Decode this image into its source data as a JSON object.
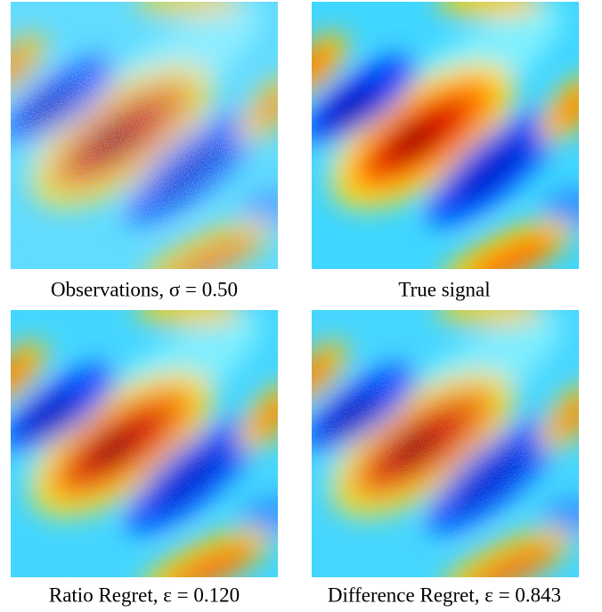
{
  "figure": {
    "panels": [
      {
        "caption": "Observations, σ = 0.50"
      },
      {
        "caption": "True signal"
      },
      {
        "caption": "Ratio Regret, ε = 0.120"
      },
      {
        "caption": "Difference Regret, ε = 0.843"
      }
    ]
  }
}
